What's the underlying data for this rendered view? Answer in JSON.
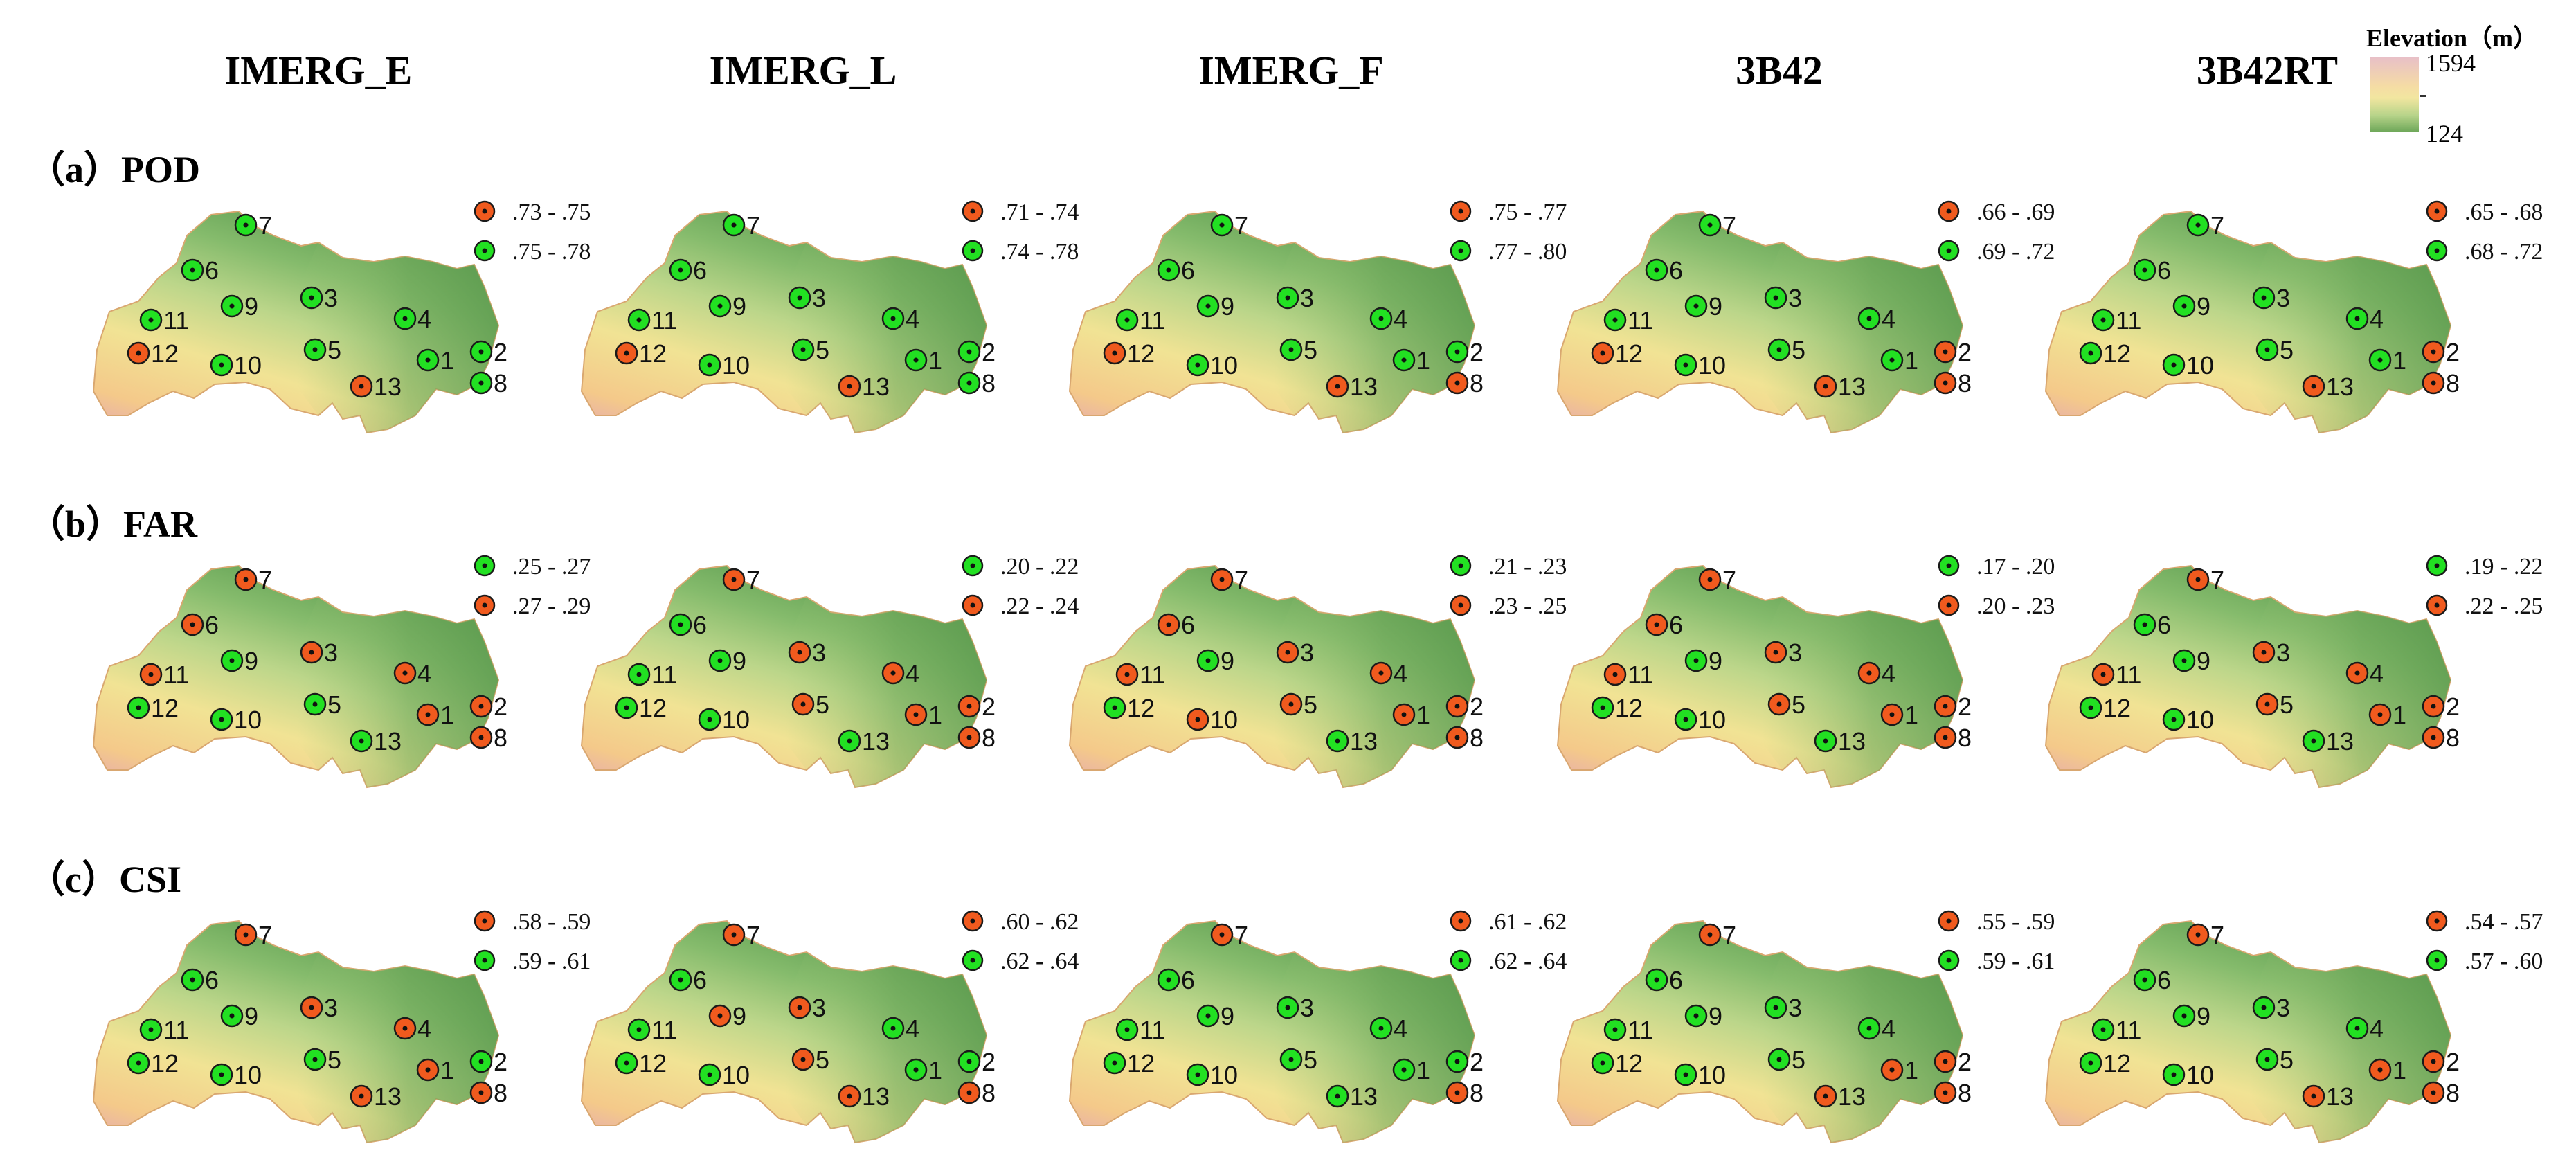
{
  "columns": [
    "IMERG_E",
    "IMERG_L",
    "IMERG_F",
    "3B42",
    "3B42RT"
  ],
  "rows": [
    {
      "label": "（a）POD",
      "metric": "POD"
    },
    {
      "label": "（b）FAR",
      "metric": "FAR"
    },
    {
      "label": "（c）CSI",
      "metric": "CSI"
    }
  ],
  "elevation_legend": {
    "title": "Elevation（m）",
    "max": "1594",
    "min": "124",
    "colors": [
      "#e8bfc8",
      "#f5dca4",
      "#b8d48a",
      "#6fa85a"
    ]
  },
  "class_colors": {
    "orange": "#f05a1e",
    "green": "#22e022"
  },
  "station_labels": [
    "1",
    "2",
    "3",
    "4",
    "5",
    "6",
    "7",
    "8",
    "9",
    "10",
    "11",
    "12",
    "13"
  ],
  "panels": [
    {
      "row": "POD",
      "column": "IMERG_E",
      "legend": [
        {
          "color": "orange",
          "range": ".73 - .75"
        },
        {
          "color": "green",
          "range": ".75 - .78"
        }
      ],
      "stations": {
        "1": "green",
        "2": "green",
        "3": "green",
        "4": "green",
        "5": "green",
        "6": "green",
        "7": "green",
        "8": "green",
        "9": "green",
        "10": "green",
        "11": "green",
        "12": "orange",
        "13": "orange"
      }
    },
    {
      "row": "POD",
      "column": "IMERG_L",
      "legend": [
        {
          "color": "orange",
          "range": ".71 - .74"
        },
        {
          "color": "green",
          "range": ".74 - .78"
        }
      ],
      "stations": {
        "1": "green",
        "2": "green",
        "3": "green",
        "4": "green",
        "5": "green",
        "6": "green",
        "7": "green",
        "8": "green",
        "9": "green",
        "10": "green",
        "11": "green",
        "12": "orange",
        "13": "orange"
      }
    },
    {
      "row": "POD",
      "column": "IMERG_F",
      "legend": [
        {
          "color": "orange",
          "range": ".75 - .77"
        },
        {
          "color": "green",
          "range": ".77 - .80"
        }
      ],
      "stations": {
        "1": "green",
        "2": "green",
        "3": "green",
        "4": "green",
        "5": "green",
        "6": "green",
        "7": "green",
        "8": "orange",
        "9": "green",
        "10": "green",
        "11": "green",
        "12": "orange",
        "13": "orange"
      }
    },
    {
      "row": "POD",
      "column": "3B42",
      "legend": [
        {
          "color": "orange",
          "range": ".66 - .69"
        },
        {
          "color": "green",
          "range": ".69 - .72"
        }
      ],
      "stations": {
        "1": "green",
        "2": "orange",
        "3": "green",
        "4": "green",
        "5": "green",
        "6": "green",
        "7": "green",
        "8": "orange",
        "9": "green",
        "10": "green",
        "11": "green",
        "12": "orange",
        "13": "orange"
      }
    },
    {
      "row": "POD",
      "column": "3B42RT",
      "legend": [
        {
          "color": "orange",
          "range": ".65 - .68"
        },
        {
          "color": "green",
          "range": ".68 - .72"
        }
      ],
      "stations": {
        "1": "green",
        "2": "orange",
        "3": "green",
        "4": "green",
        "5": "green",
        "6": "green",
        "7": "green",
        "8": "orange",
        "9": "green",
        "10": "green",
        "11": "green",
        "12": "green",
        "13": "orange"
      }
    },
    {
      "row": "FAR",
      "column": "IMERG_E",
      "legend": [
        {
          "color": "green",
          "range": ".25 - .27"
        },
        {
          "color": "orange",
          "range": ".27 - .29"
        }
      ],
      "stations": {
        "1": "orange",
        "2": "orange",
        "3": "orange",
        "4": "orange",
        "5": "green",
        "6": "orange",
        "7": "orange",
        "8": "orange",
        "9": "green",
        "10": "green",
        "11": "orange",
        "12": "green",
        "13": "green"
      }
    },
    {
      "row": "FAR",
      "column": "IMERG_L",
      "legend": [
        {
          "color": "green",
          "range": ".20 - .22"
        },
        {
          "color": "orange",
          "range": ".22 - .24"
        }
      ],
      "stations": {
        "1": "orange",
        "2": "orange",
        "3": "orange",
        "4": "orange",
        "5": "orange",
        "6": "green",
        "7": "orange",
        "8": "orange",
        "9": "green",
        "10": "green",
        "11": "green",
        "12": "green",
        "13": "green"
      }
    },
    {
      "row": "FAR",
      "column": "IMERG_F",
      "legend": [
        {
          "color": "green",
          "range": ".21 - .23"
        },
        {
          "color": "orange",
          "range": ".23 - .25"
        }
      ],
      "stations": {
        "1": "orange",
        "2": "orange",
        "3": "orange",
        "4": "orange",
        "5": "orange",
        "6": "orange",
        "7": "orange",
        "8": "orange",
        "9": "green",
        "10": "orange",
        "11": "orange",
        "12": "green",
        "13": "green"
      }
    },
    {
      "row": "FAR",
      "column": "3B42",
      "legend": [
        {
          "color": "green",
          "range": ".17 - .20"
        },
        {
          "color": "orange",
          "range": ".20 - .23"
        }
      ],
      "stations": {
        "1": "orange",
        "2": "orange",
        "3": "orange",
        "4": "orange",
        "5": "orange",
        "6": "orange",
        "7": "orange",
        "8": "orange",
        "9": "green",
        "10": "green",
        "11": "orange",
        "12": "green",
        "13": "green"
      }
    },
    {
      "row": "FAR",
      "column": "3B42RT",
      "legend": [
        {
          "color": "green",
          "range": ".19 - .22"
        },
        {
          "color": "orange",
          "range": ".22 - .25"
        }
      ],
      "stations": {
        "1": "orange",
        "2": "orange",
        "3": "orange",
        "4": "orange",
        "5": "orange",
        "6": "green",
        "7": "orange",
        "8": "orange",
        "9": "green",
        "10": "green",
        "11": "orange",
        "12": "green",
        "13": "green"
      }
    },
    {
      "row": "CSI",
      "column": "IMERG_E",
      "legend": [
        {
          "color": "orange",
          "range": ".58 - .59"
        },
        {
          "color": "green",
          "range": ".59 - .61"
        }
      ],
      "stations": {
        "1": "orange",
        "2": "green",
        "3": "orange",
        "4": "orange",
        "5": "green",
        "6": "green",
        "7": "orange",
        "8": "orange",
        "9": "green",
        "10": "green",
        "11": "green",
        "12": "green",
        "13": "orange"
      }
    },
    {
      "row": "CSI",
      "column": "IMERG_L",
      "legend": [
        {
          "color": "orange",
          "range": ".60 - .62"
        },
        {
          "color": "green",
          "range": ".62 - .64"
        }
      ],
      "stations": {
        "1": "green",
        "2": "green",
        "3": "orange",
        "4": "green",
        "5": "orange",
        "6": "green",
        "7": "orange",
        "8": "orange",
        "9": "orange",
        "10": "green",
        "11": "green",
        "12": "green",
        "13": "orange"
      }
    },
    {
      "row": "CSI",
      "column": "IMERG_F",
      "legend": [
        {
          "color": "orange",
          "range": ".61 - .62"
        },
        {
          "color": "green",
          "range": ".62 - .64"
        }
      ],
      "stations": {
        "1": "green",
        "2": "green",
        "3": "green",
        "4": "green",
        "5": "green",
        "6": "green",
        "7": "orange",
        "8": "orange",
        "9": "green",
        "10": "green",
        "11": "green",
        "12": "green",
        "13": "green"
      }
    },
    {
      "row": "CSI",
      "column": "3B42",
      "legend": [
        {
          "color": "orange",
          "range": ".55 - .59"
        },
        {
          "color": "green",
          "range": ".59 - .61"
        }
      ],
      "stations": {
        "1": "orange",
        "2": "orange",
        "3": "green",
        "4": "green",
        "5": "green",
        "6": "green",
        "7": "orange",
        "8": "orange",
        "9": "green",
        "10": "green",
        "11": "green",
        "12": "green",
        "13": "orange"
      }
    },
    {
      "row": "CSI",
      "column": "3B42RT",
      "legend": [
        {
          "color": "orange",
          "range": ".54 - .57"
        },
        {
          "color": "green",
          "range": ".57 - .60"
        }
      ],
      "stations": {
        "1": "orange",
        "2": "orange",
        "3": "green",
        "4": "green",
        "5": "green",
        "6": "green",
        "7": "orange",
        "8": "orange",
        "9": "green",
        "10": "green",
        "11": "green",
        "12": "green",
        "13": "orange"
      }
    }
  ]
}
